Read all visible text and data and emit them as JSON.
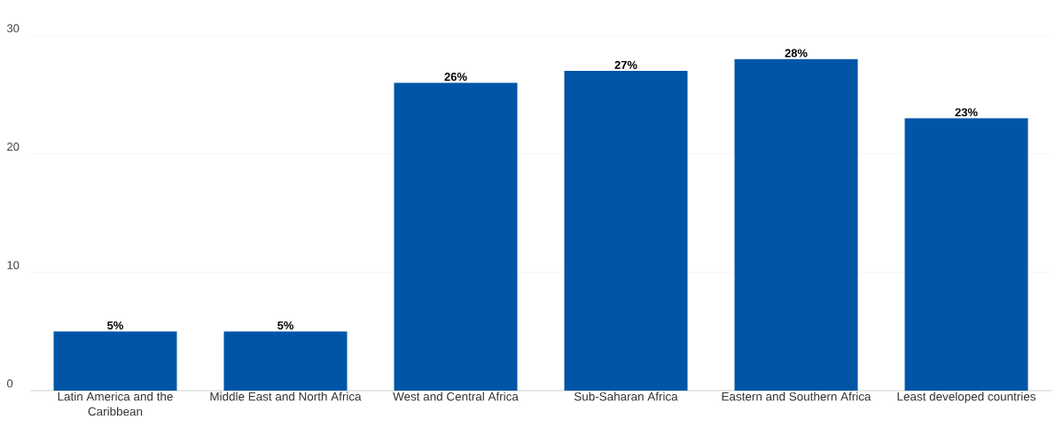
{
  "chart_data": {
    "type": "bar",
    "categories": [
      "Latin America and the Caribbean",
      "Middle East and North Africa",
      "West and Central Africa",
      "Sub-Saharan Africa",
      "Eastern and Southern Africa",
      "Least developed countries"
    ],
    "values": [
      5,
      5,
      26,
      27,
      28,
      23
    ],
    "value_labels": [
      "5%",
      "5%",
      "26%",
      "27%",
      "28%",
      "23%"
    ],
    "color": "#0055a6",
    "ylim": [
      0,
      30
    ],
    "yticks": [
      0,
      10,
      20,
      30
    ],
    "grid": "y"
  }
}
